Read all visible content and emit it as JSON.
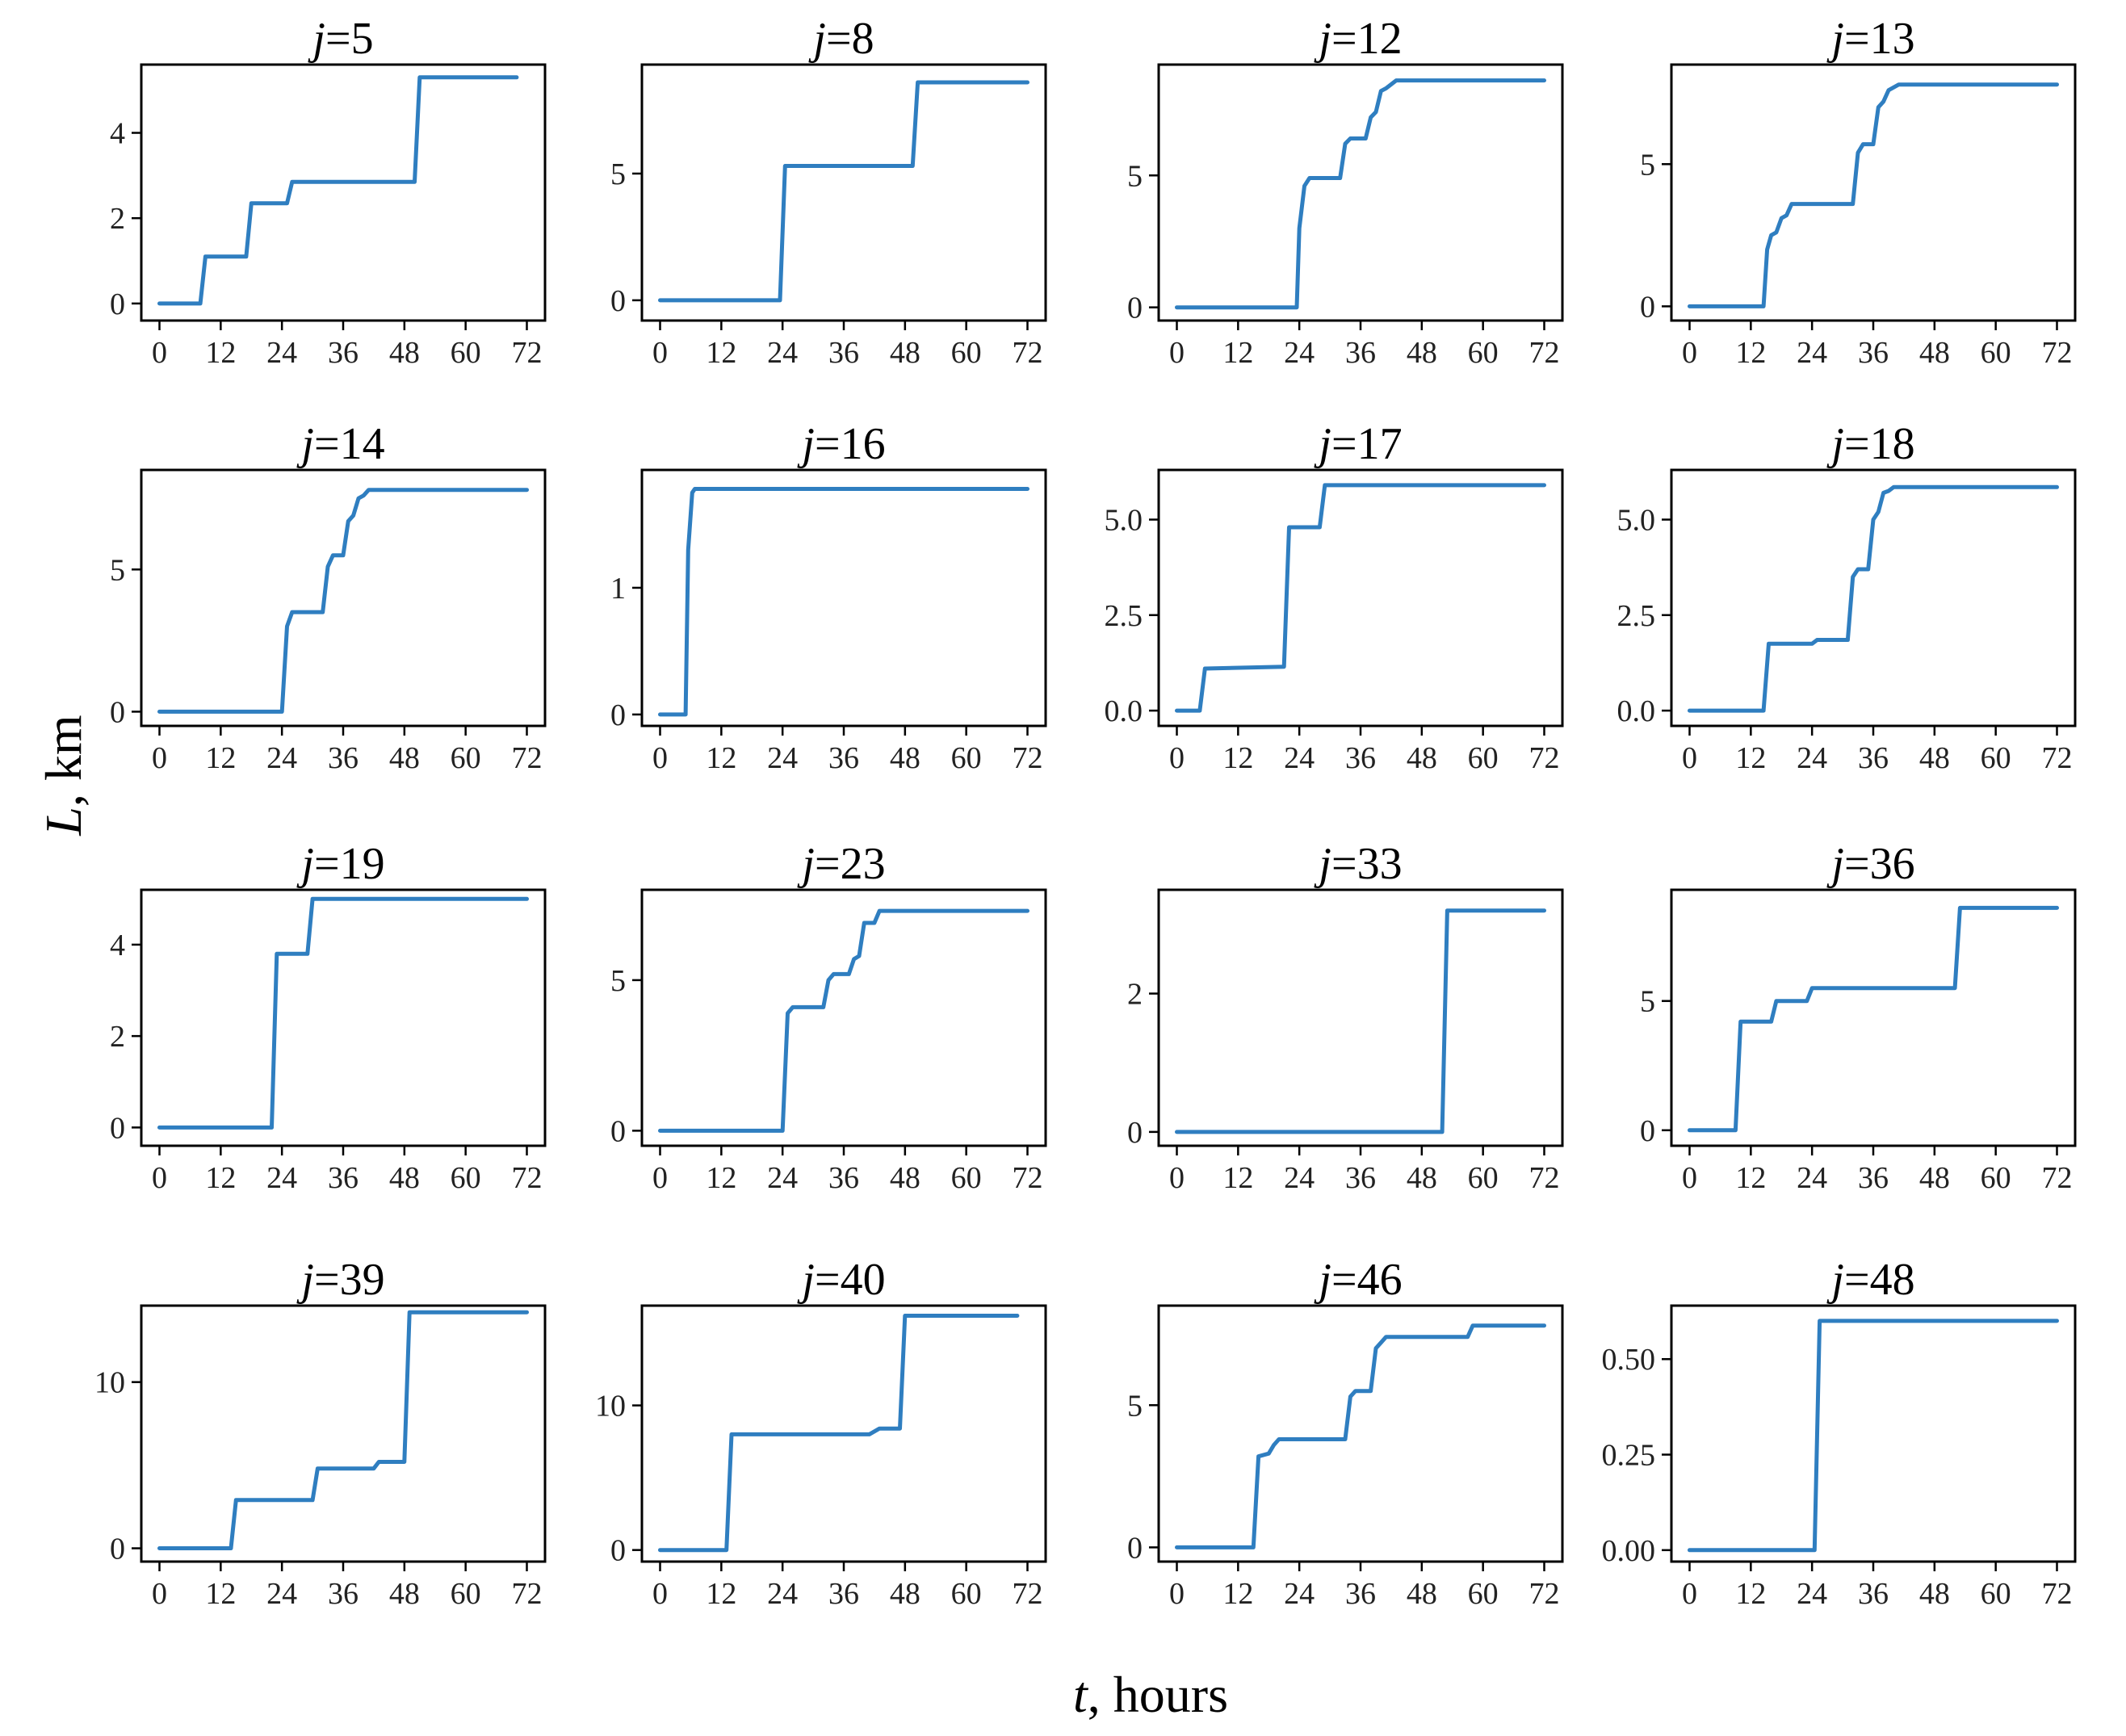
{
  "chart_data": {
    "type": "line",
    "layout": "4x4 grid of small multiples",
    "xlabel": "t, hours",
    "ylabel": "L, km",
    "line_color": "#2f7ec0",
    "xlim": [
      0,
      72
    ],
    "x_ticks": [
      "0",
      "12",
      "24",
      "36",
      "48",
      "60",
      "72"
    ],
    "panels": [
      {
        "title_var": "j",
        "title_num": "=5",
        "ylim": [
          -0.4,
          5.6
        ],
        "y_ticks": [
          0,
          2,
          4
        ],
        "y_tick_labels": [
          "0",
          "2",
          "4"
        ],
        "points": [
          [
            0,
            0
          ],
          [
            8,
            0
          ],
          [
            9,
            1.1
          ],
          [
            17,
            1.1
          ],
          [
            18,
            2.35
          ],
          [
            25,
            2.35
          ],
          [
            26,
            2.85
          ],
          [
            50,
            2.85
          ],
          [
            51,
            5.3
          ],
          [
            70,
            5.3
          ]
        ]
      },
      {
        "title_var": "j",
        "title_num": "=8",
        "ylim": [
          -0.8,
          9.3
        ],
        "y_ticks": [
          0,
          5
        ],
        "y_tick_labels": [
          "0",
          "5"
        ],
        "points": [
          [
            0,
            0
          ],
          [
            23.5,
            0
          ],
          [
            24.5,
            5.3
          ],
          [
            49.5,
            5.3
          ],
          [
            50.5,
            8.6
          ],
          [
            72,
            8.6
          ]
        ]
      },
      {
        "title_var": "j",
        "title_num": "=12",
        "ylim": [
          -0.5,
          9.2
        ],
        "y_ticks": [
          0,
          5
        ],
        "y_tick_labels": [
          "0",
          "5"
        ],
        "points": [
          [
            0,
            0
          ],
          [
            23.5,
            0
          ],
          [
            24,
            3
          ],
          [
            25,
            4.6
          ],
          [
            26,
            4.9
          ],
          [
            32,
            4.9
          ],
          [
            33,
            6.2
          ],
          [
            34,
            6.4
          ],
          [
            37,
            6.4
          ],
          [
            38,
            7.2
          ],
          [
            39,
            7.4
          ],
          [
            40,
            8.2
          ],
          [
            41,
            8.3
          ],
          [
            43,
            8.6
          ],
          [
            72,
            8.6
          ]
        ]
      },
      {
        "title_var": "j",
        "title_num": "=13",
        "ylim": [
          -0.5,
          8.5
        ],
        "y_ticks": [
          0,
          5
        ],
        "y_tick_labels": [
          "0",
          "5"
        ],
        "points": [
          [
            0,
            0
          ],
          [
            14.5,
            0
          ],
          [
            15.2,
            2
          ],
          [
            16,
            2.5
          ],
          [
            17,
            2.6
          ],
          [
            18,
            3.1
          ],
          [
            19,
            3.2
          ],
          [
            20,
            3.6
          ],
          [
            32,
            3.6
          ],
          [
            33,
            5.4
          ],
          [
            34,
            5.7
          ],
          [
            36,
            5.7
          ],
          [
            37,
            7
          ],
          [
            38,
            7.2
          ],
          [
            39,
            7.6
          ],
          [
            40,
            7.7
          ],
          [
            41,
            7.8
          ],
          [
            72,
            7.8
          ]
        ]
      },
      {
        "title_var": "j",
        "title_num": "=14",
        "ylim": [
          -0.5,
          8.5
        ],
        "y_ticks": [
          0,
          5
        ],
        "y_tick_labels": [
          "0",
          "5"
        ],
        "points": [
          [
            0,
            0
          ],
          [
            24,
            0
          ],
          [
            25,
            3
          ],
          [
            26,
            3.5
          ],
          [
            32,
            3.5
          ],
          [
            33,
            5.1
          ],
          [
            34,
            5.5
          ],
          [
            36,
            5.5
          ],
          [
            37,
            6.7
          ],
          [
            38,
            6.9
          ],
          [
            39,
            7.5
          ],
          [
            40,
            7.6
          ],
          [
            41,
            7.8
          ],
          [
            72,
            7.8
          ]
        ]
      },
      {
        "title_var": "j",
        "title_num": "=16",
        "ylim": [
          -0.09,
          1.93
        ],
        "y_ticks": [
          0,
          1
        ],
        "y_tick_labels": [
          "0",
          "1"
        ],
        "points": [
          [
            0,
            0
          ],
          [
            5,
            0
          ],
          [
            5.5,
            1.3
          ],
          [
            6.3,
            1.75
          ],
          [
            6.8,
            1.78
          ],
          [
            72,
            1.78
          ]
        ]
      },
      {
        "title_var": "j",
        "title_num": "=17",
        "ylim": [
          -0.4,
          6.3
        ],
        "y_ticks": [
          0,
          2.5,
          5
        ],
        "y_tick_labels": [
          "0.0",
          "2.5",
          "5.0"
        ],
        "points": [
          [
            0,
            0
          ],
          [
            4.5,
            0
          ],
          [
            5.5,
            1.1
          ],
          [
            21,
            1.15
          ],
          [
            22,
            4.8
          ],
          [
            28,
            4.8
          ],
          [
            29,
            5.9
          ],
          [
            72,
            5.9
          ]
        ]
      },
      {
        "title_var": "j",
        "title_num": "=18",
        "ylim": [
          -0.4,
          6.3
        ],
        "y_ticks": [
          0,
          2.5,
          5
        ],
        "y_tick_labels": [
          "0.0",
          "2.5",
          "5.0"
        ],
        "points": [
          [
            0,
            0
          ],
          [
            14.5,
            0
          ],
          [
            15.5,
            1.75
          ],
          [
            24,
            1.75
          ],
          [
            25,
            1.85
          ],
          [
            31,
            1.85
          ],
          [
            32,
            3.5
          ],
          [
            33,
            3.7
          ],
          [
            35,
            3.7
          ],
          [
            36,
            5
          ],
          [
            37,
            5.2
          ],
          [
            38,
            5.7
          ],
          [
            39,
            5.75
          ],
          [
            40,
            5.85
          ],
          [
            72,
            5.85
          ]
        ]
      },
      {
        "title_var": "j",
        "title_num": "=19",
        "ylim": [
          -0.4,
          5.2
        ],
        "y_ticks": [
          0,
          2,
          4
        ],
        "y_tick_labels": [
          "0",
          "2",
          "4"
        ],
        "points": [
          [
            0,
            0
          ],
          [
            22,
            0
          ],
          [
            23,
            3.8
          ],
          [
            29,
            3.8
          ],
          [
            30,
            5
          ],
          [
            72,
            5
          ]
        ]
      },
      {
        "title_var": "j",
        "title_num": "=23",
        "ylim": [
          -0.5,
          8
        ],
        "y_ticks": [
          0,
          5
        ],
        "y_tick_labels": [
          "0",
          "5"
        ],
        "points": [
          [
            0,
            0
          ],
          [
            24,
            0
          ],
          [
            25,
            3.9
          ],
          [
            26,
            4.1
          ],
          [
            32,
            4.1
          ],
          [
            33,
            5
          ],
          [
            34,
            5.2
          ],
          [
            37,
            5.2
          ],
          [
            38,
            5.7
          ],
          [
            39,
            5.8
          ],
          [
            40,
            6.9
          ],
          [
            42,
            6.9
          ],
          [
            43,
            7.3
          ],
          [
            72,
            7.3
          ]
        ]
      },
      {
        "title_var": "j",
        "title_num": "=33",
        "ylim": [
          -0.2,
          3.5
        ],
        "y_ticks": [
          0,
          2
        ],
        "y_tick_labels": [
          "0",
          "2"
        ],
        "points": [
          [
            0,
            0
          ],
          [
            52,
            0
          ],
          [
            53,
            3.2
          ],
          [
            72,
            3.2
          ]
        ]
      },
      {
        "title_var": "j",
        "title_num": "=36",
        "ylim": [
          -0.6,
          9.3
        ],
        "y_ticks": [
          0,
          5
        ],
        "y_tick_labels": [
          "0",
          "5"
        ],
        "points": [
          [
            0,
            0
          ],
          [
            9,
            0
          ],
          [
            10,
            4.2
          ],
          [
            16,
            4.2
          ],
          [
            17,
            5
          ],
          [
            23,
            5
          ],
          [
            24,
            5.5
          ],
          [
            52,
            5.5
          ],
          [
            53,
            8.6
          ],
          [
            72,
            8.6
          ]
        ]
      },
      {
        "title_var": "j",
        "title_num": "=39",
        "ylim": [
          -0.8,
          14.6
        ],
        "y_ticks": [
          0,
          10
        ],
        "y_tick_labels": [
          "0",
          "10"
        ],
        "points": [
          [
            0,
            0
          ],
          [
            14,
            0
          ],
          [
            15,
            2.9
          ],
          [
            30,
            2.9
          ],
          [
            31,
            4.8
          ],
          [
            42,
            4.8
          ],
          [
            43,
            5.2
          ],
          [
            48,
            5.2
          ],
          [
            49,
            14.2
          ],
          [
            72,
            14.2
          ]
        ]
      },
      {
        "title_var": "j",
        "title_num": "=40",
        "ylim": [
          -0.8,
          16.9
        ],
        "y_ticks": [
          0,
          10
        ],
        "y_tick_labels": [
          "0",
          "10"
        ],
        "points": [
          [
            0,
            0
          ],
          [
            13,
            0
          ],
          [
            14,
            8
          ],
          [
            41,
            8
          ],
          [
            43,
            8.4
          ],
          [
            47,
            8.4
          ],
          [
            48,
            16.2
          ],
          [
            70,
            16.2
          ]
        ]
      },
      {
        "title_var": "j",
        "title_num": "=46",
        "ylim": [
          -0.5,
          8.5
        ],
        "y_ticks": [
          0,
          5
        ],
        "y_tick_labels": [
          "0",
          "5"
        ],
        "points": [
          [
            0,
            0
          ],
          [
            15,
            0
          ],
          [
            16,
            3.2
          ],
          [
            18,
            3.3
          ],
          [
            19,
            3.6
          ],
          [
            20,
            3.8
          ],
          [
            33,
            3.8
          ],
          [
            34,
            5.3
          ],
          [
            35,
            5.5
          ],
          [
            38,
            5.5
          ],
          [
            39,
            7
          ],
          [
            40,
            7.2
          ],
          [
            41,
            7.4
          ],
          [
            57,
            7.4
          ],
          [
            58,
            7.8
          ],
          [
            72,
            7.8
          ]
        ]
      },
      {
        "title_var": "j",
        "title_num": "=48",
        "ylim": [
          -0.03,
          0.64
        ],
        "y_ticks": [
          0,
          0.25,
          0.5
        ],
        "y_tick_labels": [
          "0.00",
          "0.25",
          "0.50"
        ],
        "points": [
          [
            0,
            0
          ],
          [
            24.5,
            0
          ],
          [
            25.5,
            0.6
          ],
          [
            72,
            0.6
          ]
        ]
      }
    ]
  }
}
